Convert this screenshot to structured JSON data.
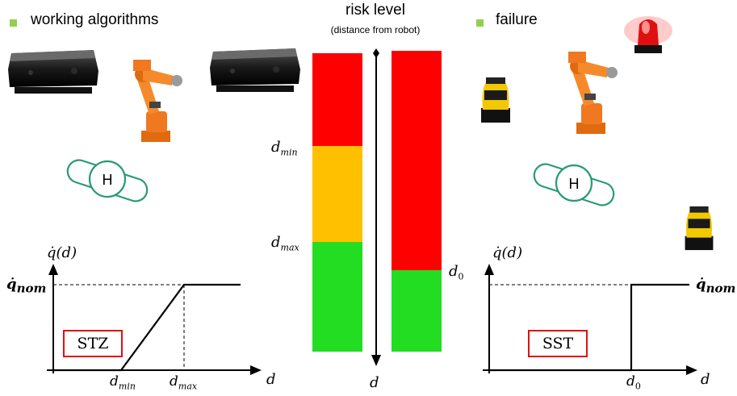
{
  "left_section": {
    "bullet_label": "working algorithms"
  },
  "right_section": {
    "bullet_label": "failure"
  },
  "center": {
    "title": "risk level",
    "subtitle": "(distance from robot)",
    "d_min_label": {
      "base": "d",
      "sub": "min"
    },
    "d_max_label": {
      "base": "d",
      "sub": "max"
    },
    "d0_label": {
      "base": "d",
      "sub": "0"
    },
    "axis_label": "d"
  },
  "colors": {
    "red": "#ff0000",
    "amber": "#ffc000",
    "green": "#22dd22",
    "bullet": "#92d050",
    "human": "#2a9a78",
    "robot": "#f07820",
    "stop_box": "#e01010"
  },
  "risk_bars": {
    "left_zones": [
      "red",
      "amber",
      "green"
    ],
    "right_zones": [
      "red",
      "green"
    ]
  },
  "human_icon_label": "H",
  "left_plot": {
    "ylabel": "q̇(d)",
    "qnom_label": {
      "base": "q̇",
      "sub": "nom"
    },
    "box_label": "STZ",
    "xtick_min": {
      "base": "d",
      "sub": "min"
    },
    "xtick_max": {
      "base": "d",
      "sub": "max"
    },
    "xlabel": "d"
  },
  "right_plot": {
    "ylabel": "q̇(d)",
    "qnom_label": {
      "base": "q̇",
      "sub": "nom"
    },
    "box_label": "SST",
    "xtick_d0": {
      "base": "d",
      "sub": "0"
    },
    "xlabel": "d"
  },
  "icons": [
    "depth-camera-icon",
    "robot-arm-icon",
    "human-icon",
    "laser-scanner-icon",
    "alarm-beacon-icon"
  ]
}
